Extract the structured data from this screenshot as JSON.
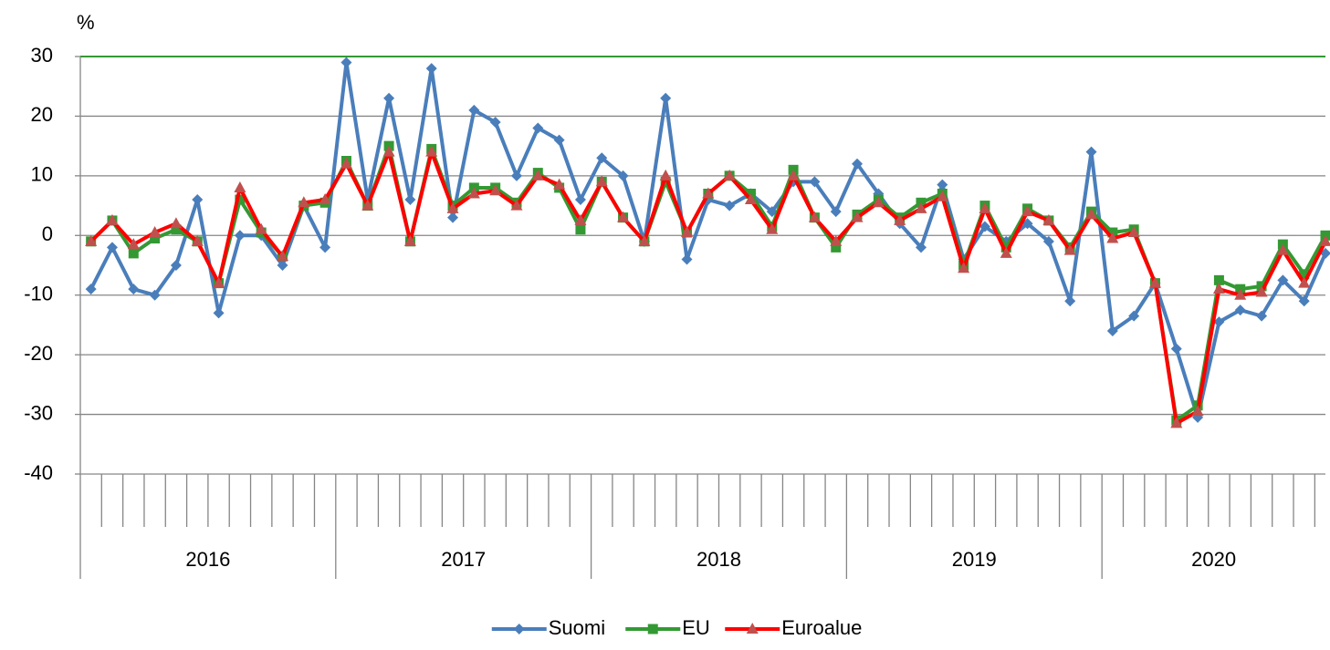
{
  "chart_data": {
    "type": "line",
    "ylabel": "%",
    "categories": [
      "2016",
      "2016",
      "2016",
      "2016",
      "2016",
      "2016",
      "2016",
      "2016",
      "2016",
      "2016",
      "2016",
      "2016",
      "2017",
      "2017",
      "2017",
      "2017",
      "2017",
      "2017",
      "2017",
      "2017",
      "2017",
      "2017",
      "2017",
      "2017",
      "2018",
      "2018",
      "2018",
      "2018",
      "2018",
      "2018",
      "2018",
      "2018",
      "2018",
      "2018",
      "2018",
      "2018",
      "2019",
      "2019",
      "2019",
      "2019",
      "2019",
      "2019",
      "2019",
      "2019",
      "2019",
      "2019",
      "2019",
      "2019",
      "2020",
      "2020",
      "2020",
      "2020",
      "2020",
      "2020",
      "2020",
      "2020",
      "2020",
      "2020",
      "2020"
    ],
    "series": [
      {
        "name": "Suomi",
        "color": "#4a7ebb",
        "marker": "diamond",
        "values": [
          -9,
          -2,
          -9,
          -10,
          -5,
          6,
          -13,
          0,
          0,
          -5,
          5,
          -2,
          29,
          6,
          23,
          6,
          28,
          3,
          21,
          19,
          10,
          18,
          16,
          6,
          13,
          10,
          -1,
          23,
          -4,
          6,
          5,
          7,
          4,
          9,
          9,
          4,
          12,
          7,
          2,
          -2,
          8.5,
          -4,
          1.5,
          -1,
          2,
          -1,
          -11,
          14,
          -16,
          -13.5,
          -8,
          -19,
          -30.5,
          -14.5,
          -12.5,
          -13.5,
          -7.5,
          -11,
          -3
        ]
      },
      {
        "name": "EU",
        "color": "#339933",
        "marker": "square",
        "values": [
          -1,
          2.5,
          -3,
          -0.5,
          1,
          -1,
          -8,
          6,
          0.5,
          -3.5,
          5,
          5.5,
          12.5,
          5,
          15,
          -1,
          14.5,
          5,
          8,
          8,
          5.5,
          10.5,
          8,
          1,
          9,
          3,
          -1,
          9,
          0.5,
          7,
          10,
          7,
          1.5,
          11,
          3,
          -2,
          3.5,
          6,
          3,
          5.5,
          7,
          -5,
          5,
          -2,
          4.5,
          2.5,
          -2,
          4,
          0.5,
          1,
          -8,
          -31,
          -28.5,
          -7.5,
          -9,
          -8.5,
          -1.5,
          -6.5,
          0
        ]
      },
      {
        "name": "Euroalue",
        "color": "#ff0000",
        "marker": "triangle",
        "marker_color": "#c0504d",
        "values": [
          -1,
          2.5,
          -1.5,
          0.5,
          2,
          -1,
          -8,
          8,
          1,
          -3.5,
          5.5,
          6,
          12,
          5,
          14,
          -1,
          14,
          4.5,
          7,
          7.5,
          5,
          10,
          8.5,
          2.5,
          9,
          3,
          -1,
          10,
          0.5,
          7,
          10,
          6,
          1,
          10,
          3,
          -1,
          3,
          5.5,
          2.5,
          4.5,
          6.5,
          -5.5,
          4.5,
          -3,
          4,
          2.5,
          -2.5,
          3.5,
          -0.5,
          0.5,
          -8,
          -31.5,
          -29.5,
          -9,
          -10,
          -9.5,
          -2.5,
          -8,
          -1
        ]
      }
    ],
    "ylim": [
      -40,
      30
    ],
    "yticks": [
      -40,
      -30,
      -20,
      -10,
      0,
      10,
      20,
      30
    ],
    "grid": true,
    "legend": "bottom"
  }
}
